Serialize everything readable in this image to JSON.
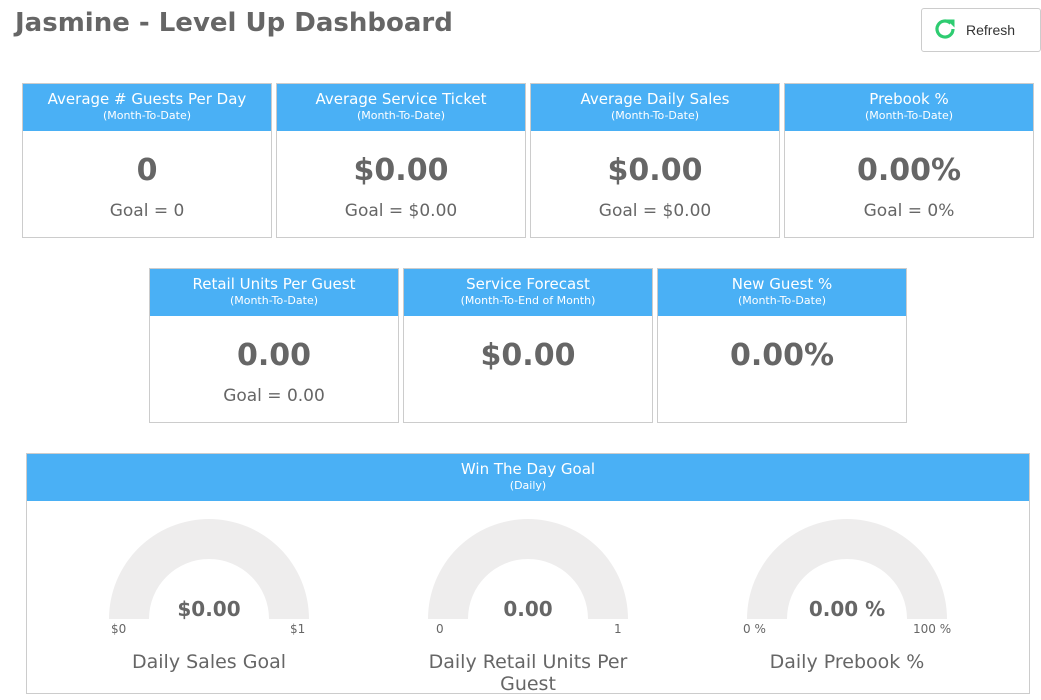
{
  "header": {
    "title": "Jasmine - Level Up Dashboard",
    "refresh_label": "Refresh"
  },
  "kpis": [
    {
      "title": "Average # Guests Per Day",
      "subtitle": "(Month-To-Date)",
      "value": "0",
      "goal": "Goal = 0"
    },
    {
      "title": "Average Service Ticket",
      "subtitle": "(Month-To-Date)",
      "value": "$0.00",
      "goal": "Goal = $0.00"
    },
    {
      "title": "Average Daily Sales",
      "subtitle": "(Month-To-Date)",
      "value": "$0.00",
      "goal": "Goal = $0.00"
    },
    {
      "title": "Prebook %",
      "subtitle": "(Month-To-Date)",
      "value": "0.00%",
      "goal": "Goal = 0%"
    },
    {
      "title": "Retail Units Per Guest",
      "subtitle": "(Month-To-Date)",
      "value": "0.00",
      "goal": "Goal = 0.00"
    },
    {
      "title": "Service Forecast",
      "subtitle": "(Month-To-End of Month)",
      "value": "$0.00",
      "goal": ""
    },
    {
      "title": "New Guest %",
      "subtitle": "(Month-To-Date)",
      "value": "0.00%",
      "goal": ""
    }
  ],
  "win_the_day": {
    "title": "Win The Day Goal",
    "subtitle": "(Daily)",
    "gauges": [
      {
        "value": "$0.00",
        "min": "$0",
        "max": "$1",
        "label": "Daily Sales Goal",
        "fill": 0
      },
      {
        "value": "0.00",
        "min": "0",
        "max": "1",
        "label": "Daily Retail Units Per Guest",
        "fill": 0
      },
      {
        "value": "0.00 %",
        "min": "0 %",
        "max": "100 %",
        "label": "Daily Prebook %",
        "fill": 0
      }
    ]
  },
  "colors": {
    "header_blue": "#4ab0f5",
    "gauge_track": "#eeeded",
    "refresh_icon": "#2ecc71"
  }
}
